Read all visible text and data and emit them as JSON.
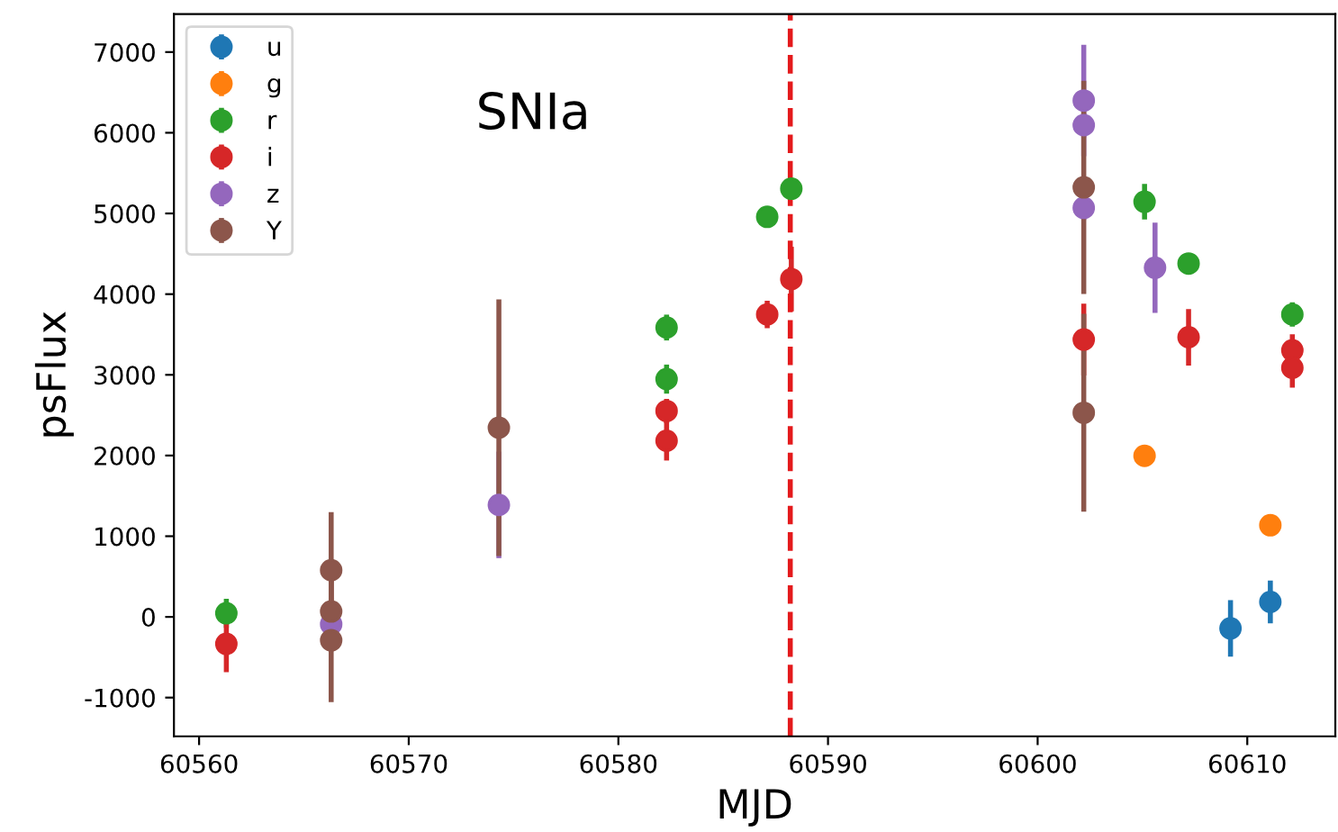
{
  "chart_data": {
    "type": "scatter",
    "xlabel": "MJD",
    "ylabel": "psFlux",
    "annotations": [
      "SNIa"
    ],
    "xlim": [
      60558.8,
      60614.2
    ],
    "ylim": [
      -1480,
      7470
    ],
    "xticks": [
      60560,
      60570,
      60580,
      60590,
      60600,
      60610
    ],
    "yticks": [
      -1000,
      0,
      1000,
      2000,
      3000,
      4000,
      5000,
      6000,
      7000
    ],
    "marker": "circle",
    "legend": "top left",
    "grid": false,
    "ref_lines": [
      {
        "axis": "x",
        "value": 60588.2,
        "color": "#e41a1c",
        "line_style": "dashed"
      }
    ],
    "series": [
      {
        "name": "u",
        "color": "#1f77b4",
        "x": [
          60609.2,
          60611.1
        ],
        "values": [
          -142,
          185
        ],
        "errors": [
          350,
          265
        ]
      },
      {
        "name": "g",
        "color": "#ff7f0e",
        "x": [
          60605.1,
          60611.1
        ],
        "values": [
          1996,
          1136
        ],
        "errors": [
          60,
          60
        ]
      },
      {
        "name": "r",
        "color": "#2ca02c",
        "x": [
          60561.3,
          60582.3,
          60582.3,
          60587.1,
          60588.25,
          60605.1,
          60607.2,
          60612.15
        ],
        "values": [
          45,
          3586,
          2947,
          4958,
          5307,
          5145,
          4379,
          3748
        ],
        "errors": [
          180,
          160,
          180,
          100,
          100,
          220,
          90,
          150
        ]
      },
      {
        "name": "i",
        "color": "#d62728",
        "x": [
          60561.3,
          60582.3,
          60582.3,
          60587.1,
          60588.25,
          60602.2,
          60607.2,
          60612.15,
          60612.15
        ],
        "values": [
          -334,
          2552,
          2183,
          3748,
          4187,
          3437,
          3466,
          3303,
          3087
        ],
        "errors": [
          350,
          150,
          245,
          170,
          400,
          445,
          350,
          200,
          245
        ]
      },
      {
        "name": "z",
        "color": "#9467bd",
        "x": [
          60566.3,
          60574.3,
          60602.2,
          60602.2,
          60602.2,
          60605.6
        ],
        "values": [
          -90,
          1388,
          6399,
          6094,
          5069,
          4327
        ],
        "errors": [
          100,
          660,
          690,
          150,
          150,
          560
        ]
      },
      {
        "name": "Y",
        "color": "#8c564b",
        "x": [
          60566.3,
          60566.3,
          60566.3,
          60574.3,
          60602.2,
          60602.2
        ],
        "values": [
          579,
          67,
          -290,
          2345,
          5323,
          2530
        ],
        "errors": [
          720,
          400,
          765,
          1590,
          1320,
          1225
        ]
      }
    ]
  }
}
